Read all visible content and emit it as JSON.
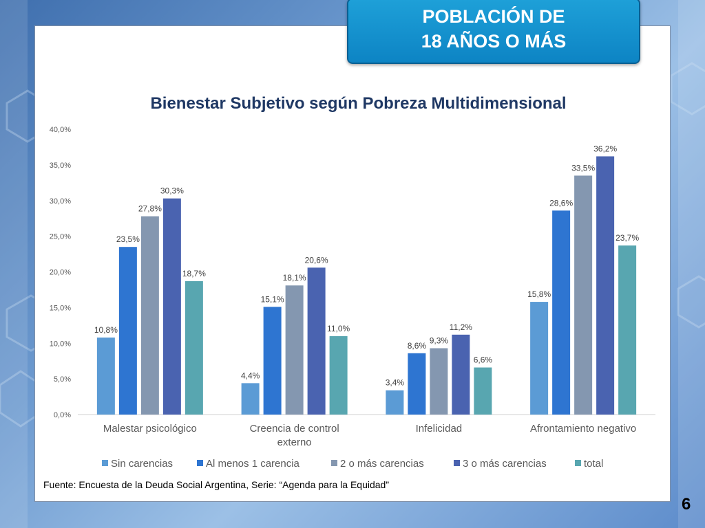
{
  "header": {
    "line1": "POBLACIÓN DE",
    "line2": "18 AÑOS O MÁS"
  },
  "source_text": "Fuente: Encuesta de la Deuda Social Argentina, Serie: “Agenda para la Equidad”",
  "page_number": "6",
  "colors": {
    "badge": "#0d84c4",
    "title": "#1f3864",
    "series": [
      "#5b9bd5",
      "#2e75d1",
      "#8497b0",
      "#4a63b0",
      "#58a6b0"
    ]
  },
  "chart_data": {
    "type": "bar",
    "title": "Bienestar Subjetivo según Pobreza Multidimensional",
    "categories": [
      [
        "Malestar psicológico"
      ],
      [
        "Creencia de control",
        "externo"
      ],
      [
        "Infelicidad"
      ],
      [
        "Afrontamiento negativo"
      ]
    ],
    "series": [
      {
        "name": "Sin carencias",
        "values": [
          10.8,
          4.4,
          3.4,
          15.8
        ],
        "labels": [
          "10,8%",
          "4,4%",
          "3,4%",
          "15,8%"
        ]
      },
      {
        "name": "Al menos 1 carencia",
        "values": [
          23.5,
          15.1,
          8.6,
          28.6
        ],
        "labels": [
          "23,5%",
          "15,1%",
          "8,6%",
          "28,6%"
        ]
      },
      {
        "name": "2 o más carencias",
        "values": [
          27.8,
          18.1,
          9.3,
          33.5
        ],
        "labels": [
          "27,8%",
          "18,1%",
          "9,3%",
          "33,5%"
        ]
      },
      {
        "name": "3 o más carencias",
        "values": [
          30.3,
          20.6,
          11.2,
          36.2
        ],
        "labels": [
          "30,3%",
          "20,6%",
          "11,2%",
          "36,2%"
        ]
      },
      {
        "name": "total",
        "values": [
          18.7,
          11.0,
          6.6,
          23.7
        ],
        "labels": [
          "18,7%",
          "11,0%",
          "6,6%",
          "23,7%"
        ]
      }
    ],
    "ylim": [
      0,
      40
    ],
    "yticks": [
      "0,0%",
      "5,0%",
      "10,0%",
      "15,0%",
      "20,0%",
      "25,0%",
      "30,0%",
      "35,0%",
      "40,0%"
    ],
    "grid": false,
    "legend": "bottom"
  }
}
